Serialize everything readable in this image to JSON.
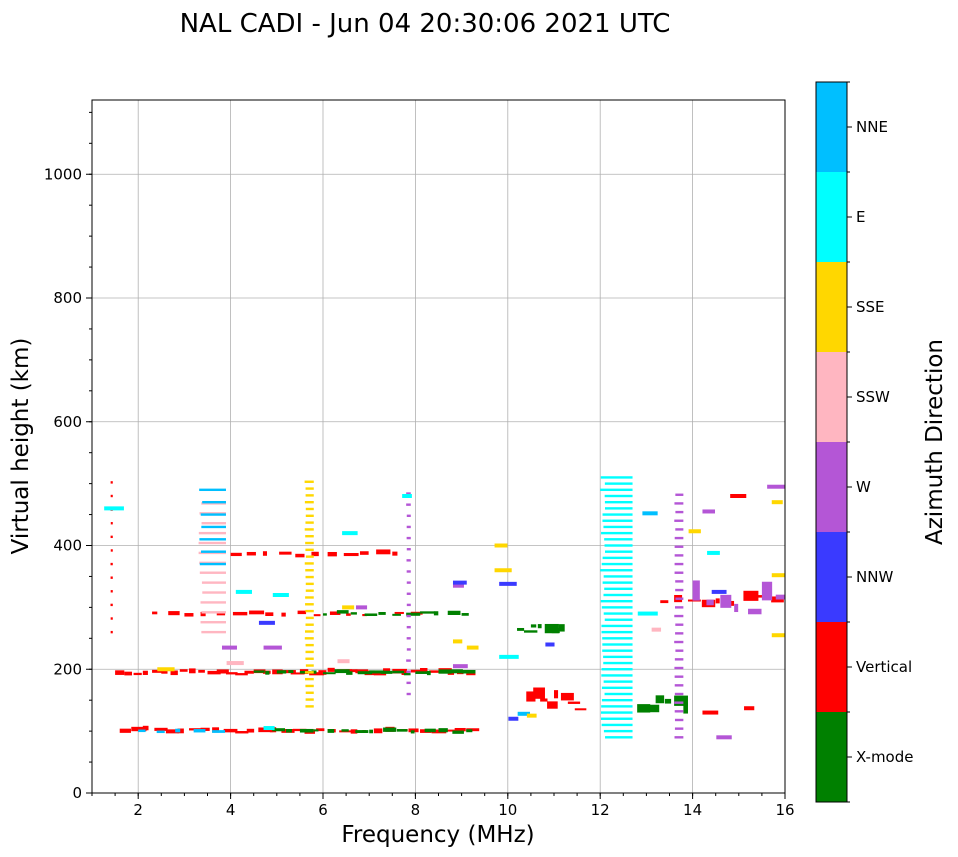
{
  "chart_data": {
    "type": "scatter",
    "title": "NAL CADI - Jun 04 20:30:06 2021 UTC",
    "xlabel": "Frequency (MHz)",
    "ylabel": "Virtual height (km)",
    "xlim": [
      1,
      16
    ],
    "ylim": [
      0,
      1120
    ],
    "xticks": [
      2,
      4,
      6,
      8,
      10,
      12,
      14,
      16
    ],
    "yticks": [
      0,
      200,
      400,
      600,
      800,
      1000
    ],
    "grid": true,
    "colorbar": {
      "label": "Azimuth Direction",
      "categories": [
        "X-mode",
        "Vertical",
        "NNW",
        "W",
        "SSW",
        "SSE",
        "E",
        "NNE"
      ],
      "colors": [
        "#008000",
        "#ff0000",
        "#3a3aff",
        "#b456d6",
        "#ffb6c1",
        "#ffd700",
        "#00ffff",
        "#00bfff"
      ]
    },
    "echo_bands": [
      {
        "category": "Vertical",
        "x": [
          1.6,
          9.3
        ],
        "y": [
          95,
          107
        ],
        "step": 0.25
      },
      {
        "category": "X-mode",
        "x": [
          4.9,
          9.3
        ],
        "y": [
          95,
          103
        ],
        "step": 0.3
      },
      {
        "category": "NNE",
        "x": [
          2.0,
          3.8
        ],
        "y": [
          96,
          102
        ],
        "step": 0.4
      },
      {
        "category": "Vertical",
        "x": [
          1.5,
          9.2
        ],
        "y": [
          190,
          200
        ],
        "step": 0.2
      },
      {
        "category": "X-mode",
        "x": [
          4.5,
          9.2
        ],
        "y": [
          190,
          198
        ],
        "step": 0.25
      },
      {
        "category": "Vertical",
        "x": [
          2.3,
          8.2
        ],
        "y": [
          285,
          293
        ],
        "step": 0.35
      },
      {
        "category": "X-mode",
        "x": [
          6.0,
          9.2
        ],
        "y": [
          286,
          294
        ],
        "step": 0.3
      },
      {
        "category": "Vertical",
        "x": [
          4.0,
          7.6
        ],
        "y": [
          380,
          390
        ],
        "step": 0.35
      },
      {
        "category": "X-mode",
        "x": [
          10.2,
          11.2
        ],
        "y": [
          255,
          280
        ],
        "step": 0.15
      },
      {
        "category": "Vertical",
        "x": [
          10.4,
          11.6
        ],
        "y": [
          130,
          170
        ],
        "step": 0.15
      },
      {
        "category": "Vertical",
        "x": [
          13.3,
          16.0
        ],
        "y": [
          300,
          330
        ],
        "step": 0.3
      },
      {
        "category": "W",
        "x": [
          14.0,
          16.0
        ],
        "y": [
          280,
          345
        ],
        "step": 0.3
      },
      {
        "category": "X-mode",
        "x": [
          12.8,
          13.8
        ],
        "y": [
          128,
          160
        ],
        "step": 0.2
      }
    ],
    "echo_lines": [
      {
        "category": "E",
        "x": [
          12.0,
          12.7
        ],
        "y": [
          90,
          510
        ],
        "spacing": 10
      },
      {
        "category": "SSE",
        "x": [
          5.6,
          5.8
        ],
        "y": [
          140,
          510
        ],
        "spacing": 11
      },
      {
        "category": "W",
        "x": [
          13.6,
          13.8
        ],
        "y": [
          90,
          490
        ],
        "spacing": 14
      },
      {
        "category": "SSW",
        "x": [
          3.3,
          3.9
        ],
        "y": [
          260,
          470
        ],
        "spacing": 16
      },
      {
        "category": "NNE",
        "x": [
          3.3,
          3.9
        ],
        "y": [
          370,
          500
        ],
        "spacing": 20
      },
      {
        "category": "W",
        "x": [
          7.8,
          7.9
        ],
        "y": [
          160,
          490
        ],
        "spacing": 18
      },
      {
        "category": "Vertical",
        "x": [
          1.4,
          1.45
        ],
        "y": [
          260,
          505
        ],
        "spacing": 22
      }
    ],
    "echo_points": [
      {
        "category": "W",
        "x": 8.9,
        "y": 335
      },
      {
        "category": "NNW",
        "x": 8.9,
        "y": 340
      },
      {
        "category": "NNW",
        "x": 9.9,
        "y": 338
      },
      {
        "category": "SSE",
        "x": 8.9,
        "y": 245
      },
      {
        "category": "SSE",
        "x": 9.2,
        "y": 235
      },
      {
        "category": "W",
        "x": 8.9,
        "y": 205
      },
      {
        "category": "SSW",
        "x": 6.4,
        "y": 213
      },
      {
        "category": "W",
        "x": 3.9,
        "y": 235
      },
      {
        "category": "SSW",
        "x": 4.0,
        "y": 210
      },
      {
        "category": "E",
        "x": 6.5,
        "y": 420
      },
      {
        "category": "W",
        "x": 6.8,
        "y": 300
      },
      {
        "category": "SSE",
        "x": 6.5,
        "y": 300
      },
      {
        "category": "E",
        "x": 5.0,
        "y": 320
      },
      {
        "category": "E",
        "x": 4.2,
        "y": 325
      },
      {
        "category": "NNW",
        "x": 14.5,
        "y": 325
      },
      {
        "category": "E",
        "x": 14.4,
        "y": 388
      },
      {
        "category": "SSE",
        "x": 14.0,
        "y": 423
      },
      {
        "category": "W",
        "x": 14.3,
        "y": 455
      },
      {
        "category": "Vertical",
        "x": 14.9,
        "y": 480
      },
      {
        "category": "W",
        "x": 15.7,
        "y": 495
      },
      {
        "category": "SSE",
        "x": 15.8,
        "y": 470
      },
      {
        "category": "SSE",
        "x": 15.8,
        "y": 255
      },
      {
        "category": "SSE",
        "x": 15.8,
        "y": 352
      },
      {
        "category": "W",
        "x": 14.6,
        "y": 90
      },
      {
        "category": "Vertical",
        "x": 14.3,
        "y": 130
      },
      {
        "category": "Vertical",
        "x": 15.2,
        "y": 137
      },
      {
        "category": "NNE",
        "x": 13.0,
        "y": 452
      },
      {
        "category": "SSW",
        "x": 13.2,
        "y": 264
      },
      {
        "category": "E",
        "x": 12.9,
        "y": 290
      },
      {
        "category": "NNW",
        "x": 10.1,
        "y": 120
      },
      {
        "category": "NNE",
        "x": 10.3,
        "y": 128
      },
      {
        "category": "SSE",
        "x": 10.5,
        "y": 125
      },
      {
        "category": "E",
        "x": 9.9,
        "y": 220
      },
      {
        "category": "NNW",
        "x": 10.9,
        "y": 240
      },
      {
        "category": "SSE",
        "x": 9.8,
        "y": 400
      },
      {
        "category": "SSE",
        "x": 9.8,
        "y": 360
      },
      {
        "category": "E",
        "x": 7.8,
        "y": 480
      },
      {
        "category": "NNW",
        "x": 4.7,
        "y": 275
      },
      {
        "category": "W",
        "x": 4.8,
        "y": 235
      },
      {
        "category": "E",
        "x": 4.8,
        "y": 105
      },
      {
        "category": "SSE",
        "x": 2.5,
        "y": 200
      },
      {
        "category": "E",
        "x": 1.35,
        "y": 460
      }
    ]
  }
}
